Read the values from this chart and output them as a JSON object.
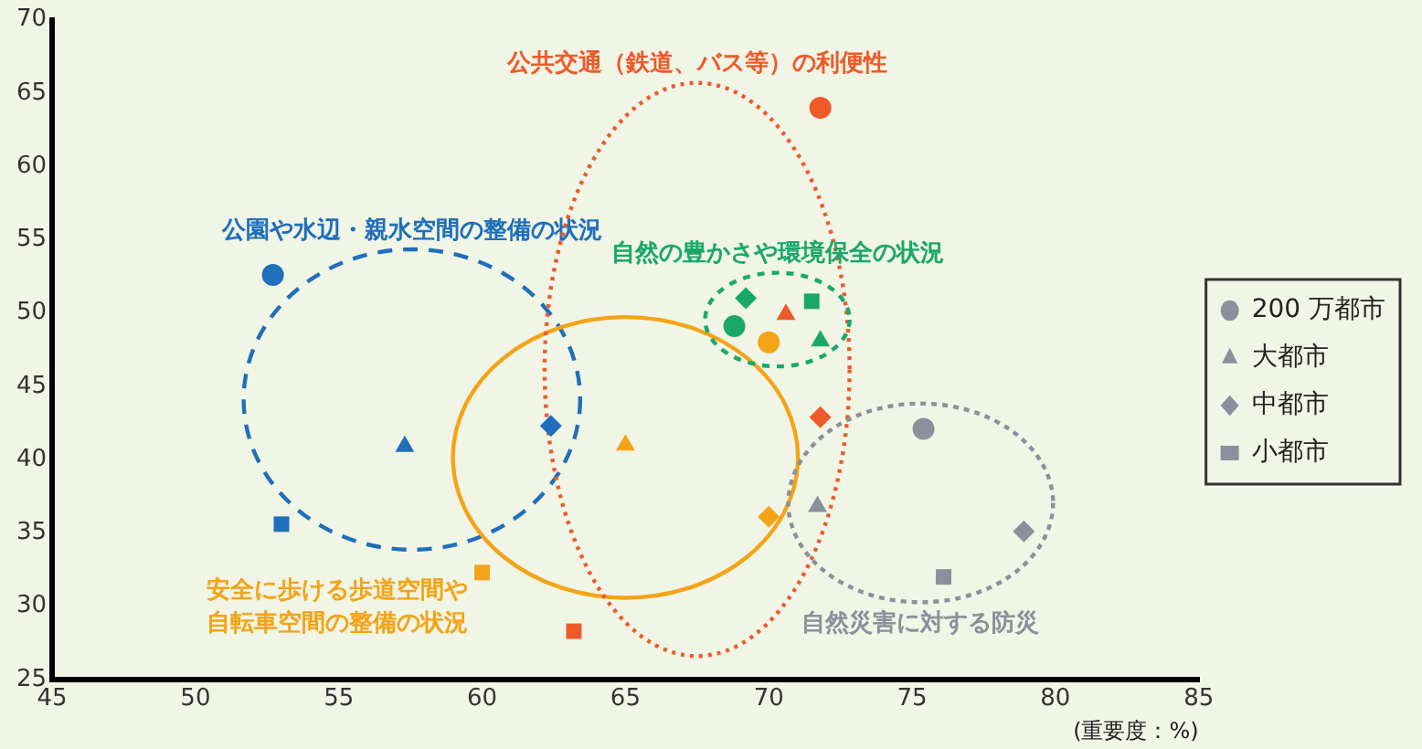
{
  "chart_data": {
    "type": "scatter",
    "xlabel": "(重要度：%)",
    "xlim": [
      45,
      85
    ],
    "xticks": [
      45,
      50,
      55,
      60,
      65,
      70,
      75,
      80,
      85
    ],
    "ylim": [
      25,
      70
    ],
    "yticks": [
      25,
      30,
      35,
      40,
      45,
      50,
      55,
      60,
      65,
      70
    ],
    "grid": false,
    "legend": "right",
    "annotations": [
      "公園や水辺・親水空間の整備の状況",
      "安全に歩ける歩道空間や自転車空間の整備の状況",
      "公共交通（鉄道、バス等）の利便性",
      "自然の豊かさや環境保全の状況",
      "自然災害に対する防災"
    ],
    "series": [
      {
        "name": "200 万都市",
        "color": "#8c909c",
        "marker": "circle",
        "x": [
          52.7,
          70.0,
          71.8,
          68.8,
          75.4
        ],
        "values": [
          52.6,
          48.0,
          64.0,
          49.1,
          42.1
        ],
        "colors": [
          "#1f6fba",
          "#f5a316",
          "#ee5a2a",
          "#1aa86a",
          "#8c909c"
        ]
      },
      {
        "name": "大都市",
        "color": "#8c909c",
        "marker": "triangle",
        "x": [
          57.3,
          65.0,
          70.6,
          71.8,
          71.7
        ],
        "values": [
          40.9,
          41.0,
          49.9,
          48.1,
          36.8
        ],
        "colors": [
          "#1f6fba",
          "#f5a316",
          "#ee5a2a",
          "#1aa86a",
          "#8c909c"
        ]
      },
      {
        "name": "中都市",
        "color": "#8c909c",
        "marker": "diamond",
        "x": [
          62.4,
          70.0,
          71.8,
          69.2,
          78.9
        ],
        "values": [
          42.3,
          36.1,
          42.9,
          51.0,
          35.1
        ],
        "colors": [
          "#1f6fba",
          "#f5a316",
          "#ee5a2a",
          "#1aa86a",
          "#8c909c"
        ]
      },
      {
        "name": "小都市",
        "color": "#8c909c",
        "marker": "square",
        "x": [
          53.0,
          60.0,
          63.2,
          71.5,
          76.1
        ],
        "values": [
          35.6,
          32.3,
          28.3,
          50.8,
          32.0
        ],
        "colors": [
          "#1f6fba",
          "#f5a316",
          "#ee5a2a",
          "#1aa86a",
          "#8c909c"
        ]
      }
    ]
  }
}
